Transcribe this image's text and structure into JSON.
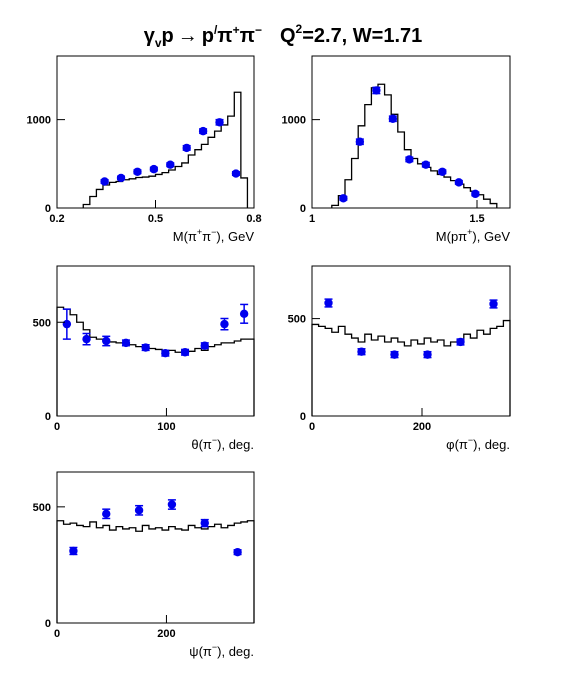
{
  "title": {
    "reaction": "γ_v p → p′π⁺π⁻",
    "kinematics": "Q²=2.7, W=1.71",
    "parts": {
      "gamma": "γ",
      "v": "v",
      "p": "p",
      "arrow": "→",
      "pprime": "p",
      "prime": "/",
      "pi1": "π",
      "plus": "+",
      "pi2": "π",
      "minus": "−",
      "q": "Q",
      "two": "2",
      "rest": "=2.7, W=1.71"
    }
  },
  "chart_data": [
    {
      "type": "histogram",
      "xlabel": "M(π⁺π⁻), GeV",
      "xlabel_parts": [
        "M(π",
        "+",
        "π",
        "−",
        "), GeV"
      ],
      "xlim": [
        0.2,
        0.8
      ],
      "ylim": [
        0,
        1720
      ],
      "xticks": [
        0.2,
        0.5,
        0.8
      ],
      "xtick_labels": [
        "0.2",
        "0.5",
        "0.8"
      ],
      "yticks": [
        0,
        1000
      ],
      "ytick_labels": [
        "0",
        "1000"
      ],
      "hist_edges": [
        0.28,
        0.3,
        0.32,
        0.34,
        0.36,
        0.38,
        0.4,
        0.42,
        0.44,
        0.46,
        0.48,
        0.5,
        0.52,
        0.54,
        0.56,
        0.58,
        0.6,
        0.62,
        0.64,
        0.66,
        0.68,
        0.7,
        0.72,
        0.74,
        0.76,
        0.78
      ],
      "hist_values": [
        40,
        130,
        210,
        260,
        290,
        300,
        320,
        330,
        345,
        350,
        360,
        380,
        400,
        430,
        470,
        510,
        600,
        660,
        720,
        800,
        870,
        940,
        1040,
        1310,
        340
      ],
      "points": [
        {
          "x": 0.345,
          "y": 300,
          "err": 20
        },
        {
          "x": 0.395,
          "y": 340,
          "err": 20
        },
        {
          "x": 0.445,
          "y": 410,
          "err": 20
        },
        {
          "x": 0.495,
          "y": 440,
          "err": 20
        },
        {
          "x": 0.545,
          "y": 490,
          "err": 20
        },
        {
          "x": 0.595,
          "y": 680,
          "err": 25
        },
        {
          "x": 0.645,
          "y": 870,
          "err": 25
        },
        {
          "x": 0.695,
          "y": 970,
          "err": 30
        },
        {
          "x": 0.745,
          "y": 390,
          "err": 20
        }
      ]
    },
    {
      "type": "histogram",
      "xlabel": "M(pπ⁺), GeV",
      "xlabel_parts": [
        "M(pπ",
        "+",
        "), GeV"
      ],
      "xlim": [
        1.0,
        1.6
      ],
      "ylim": [
        0,
        1720
      ],
      "xticks": [
        1.0,
        1.5
      ],
      "xtick_labels": [
        "1",
        "1.5"
      ],
      "yticks": [
        0,
        1000
      ],
      "ytick_labels": [
        "0",
        "1000"
      ],
      "hist_edges": [
        1.06,
        1.08,
        1.1,
        1.12,
        1.14,
        1.16,
        1.18,
        1.2,
        1.22,
        1.24,
        1.26,
        1.28,
        1.3,
        1.32,
        1.34,
        1.36,
        1.38,
        1.4,
        1.42,
        1.44,
        1.46,
        1.48,
        1.5,
        1.52,
        1.54,
        1.56
      ],
      "hist_values": [
        30,
        140,
        320,
        560,
        930,
        1170,
        1360,
        1400,
        1280,
        1060,
        860,
        660,
        560,
        500,
        460,
        420,
        380,
        350,
        310,
        270,
        230,
        190,
        150,
        100,
        50
      ],
      "points": [
        {
          "x": 1.095,
          "y": 110,
          "err": 20
        },
        {
          "x": 1.145,
          "y": 750,
          "err": 30
        },
        {
          "x": 1.195,
          "y": 1330,
          "err": 35
        },
        {
          "x": 1.245,
          "y": 1010,
          "err": 30
        },
        {
          "x": 1.295,
          "y": 550,
          "err": 25
        },
        {
          "x": 1.345,
          "y": 490,
          "err": 25
        },
        {
          "x": 1.395,
          "y": 410,
          "err": 20
        },
        {
          "x": 1.445,
          "y": 290,
          "err": 20
        },
        {
          "x": 1.495,
          "y": 160,
          "err": 20
        }
      ]
    },
    {
      "type": "histogram",
      "xlabel": "θ(π⁻), deg.",
      "xlabel_parts": [
        "θ(π",
        "−",
        "), deg."
      ],
      "xlim": [
        0,
        180
      ],
      "ylim": [
        0,
        800
      ],
      "xticks": [
        0,
        100
      ],
      "xtick_labels": [
        "0",
        "100"
      ],
      "yticks": [
        0,
        500
      ],
      "ytick_labels": [
        "0",
        "500"
      ],
      "hist_edges": [
        0,
        6,
        12,
        18,
        24,
        30,
        36,
        42,
        48,
        54,
        60,
        66,
        72,
        78,
        84,
        90,
        96,
        102,
        108,
        114,
        120,
        126,
        132,
        138,
        144,
        150,
        156,
        162,
        168,
        174,
        180
      ],
      "hist_values": [
        580,
        570,
        540,
        500,
        460,
        420,
        410,
        400,
        395,
        390,
        385,
        380,
        370,
        370,
        360,
        355,
        345,
        350,
        340,
        350,
        345,
        360,
        350,
        370,
        380,
        390,
        390,
        400,
        410,
        410
      ],
      "points": [
        {
          "x": 9,
          "y": 490,
          "err": 80
        },
        {
          "x": 27,
          "y": 410,
          "err": 30
        },
        {
          "x": 45,
          "y": 400,
          "err": 25
        },
        {
          "x": 63,
          "y": 390,
          "err": 15
        },
        {
          "x": 81,
          "y": 365,
          "err": 15
        },
        {
          "x": 99,
          "y": 335,
          "err": 15
        },
        {
          "x": 117,
          "y": 340,
          "err": 15
        },
        {
          "x": 135,
          "y": 375,
          "err": 15
        },
        {
          "x": 153,
          "y": 490,
          "err": 30
        },
        {
          "x": 171,
          "y": 545,
          "err": 50
        }
      ]
    },
    {
      "type": "histogram",
      "xlabel": "φ(π⁻), deg.",
      "xlabel_parts": [
        "φ(π",
        "−",
        "), deg."
      ],
      "xlim": [
        0,
        360
      ],
      "ylim": [
        0,
        770
      ],
      "xticks": [
        0,
        200
      ],
      "xtick_labels": [
        "0",
        "200"
      ],
      "yticks": [
        0,
        500
      ],
      "ytick_labels": [
        "0",
        "500"
      ],
      "hist_edges": [
        0,
        12,
        24,
        36,
        48,
        60,
        72,
        84,
        96,
        108,
        120,
        132,
        144,
        156,
        168,
        180,
        192,
        204,
        216,
        228,
        240,
        252,
        264,
        276,
        288,
        300,
        312,
        324,
        336,
        348,
        360
      ],
      "hist_values": [
        470,
        460,
        450,
        430,
        460,
        420,
        400,
        380,
        420,
        390,
        410,
        380,
        400,
        380,
        360,
        390,
        370,
        400,
        380,
        390,
        360,
        380,
        390,
        420,
        400,
        440,
        420,
        450,
        460,
        490
      ],
      "points": [
        {
          "x": 30,
          "y": 580,
          "err": 20
        },
        {
          "x": 90,
          "y": 330,
          "err": 15
        },
        {
          "x": 150,
          "y": 315,
          "err": 15
        },
        {
          "x": 210,
          "y": 315,
          "err": 15
        },
        {
          "x": 270,
          "y": 380,
          "err": 15
        },
        {
          "x": 330,
          "y": 575,
          "err": 20
        }
      ]
    },
    {
      "type": "histogram",
      "xlabel": "ψ(π⁻), deg.",
      "xlabel_parts": [
        "ψ(π",
        "−",
        "), deg."
      ],
      "xlim": [
        0,
        360
      ],
      "ylim": [
        0,
        650
      ],
      "xticks": [
        0,
        200
      ],
      "xtick_labels": [
        "0",
        "200"
      ],
      "yticks": [
        0,
        500
      ],
      "ytick_labels": [
        "0",
        "500"
      ],
      "hist_edges": [
        0,
        12,
        24,
        36,
        48,
        60,
        72,
        84,
        96,
        108,
        120,
        132,
        144,
        156,
        168,
        180,
        192,
        204,
        216,
        228,
        240,
        252,
        264,
        276,
        288,
        300,
        312,
        324,
        336,
        348,
        360
      ],
      "hist_values": [
        440,
        425,
        430,
        420,
        415,
        435,
        410,
        420,
        400,
        415,
        405,
        410,
        395,
        420,
        405,
        410,
        400,
        415,
        405,
        400,
        420,
        410,
        405,
        415,
        425,
        410,
        420,
        430,
        435,
        440
      ],
      "points": [
        {
          "x": 30,
          "y": 310,
          "err": 15
        },
        {
          "x": 90,
          "y": 470,
          "err": 20
        },
        {
          "x": 150,
          "y": 485,
          "err": 20
        },
        {
          "x": 210,
          "y": 510,
          "err": 20
        },
        {
          "x": 270,
          "y": 430,
          "err": 15
        },
        {
          "x": 330,
          "y": 305,
          "err": 10
        }
      ]
    }
  ],
  "colors": {
    "points": "#0000ee",
    "hist": "#000000",
    "axis": "#000000"
  }
}
